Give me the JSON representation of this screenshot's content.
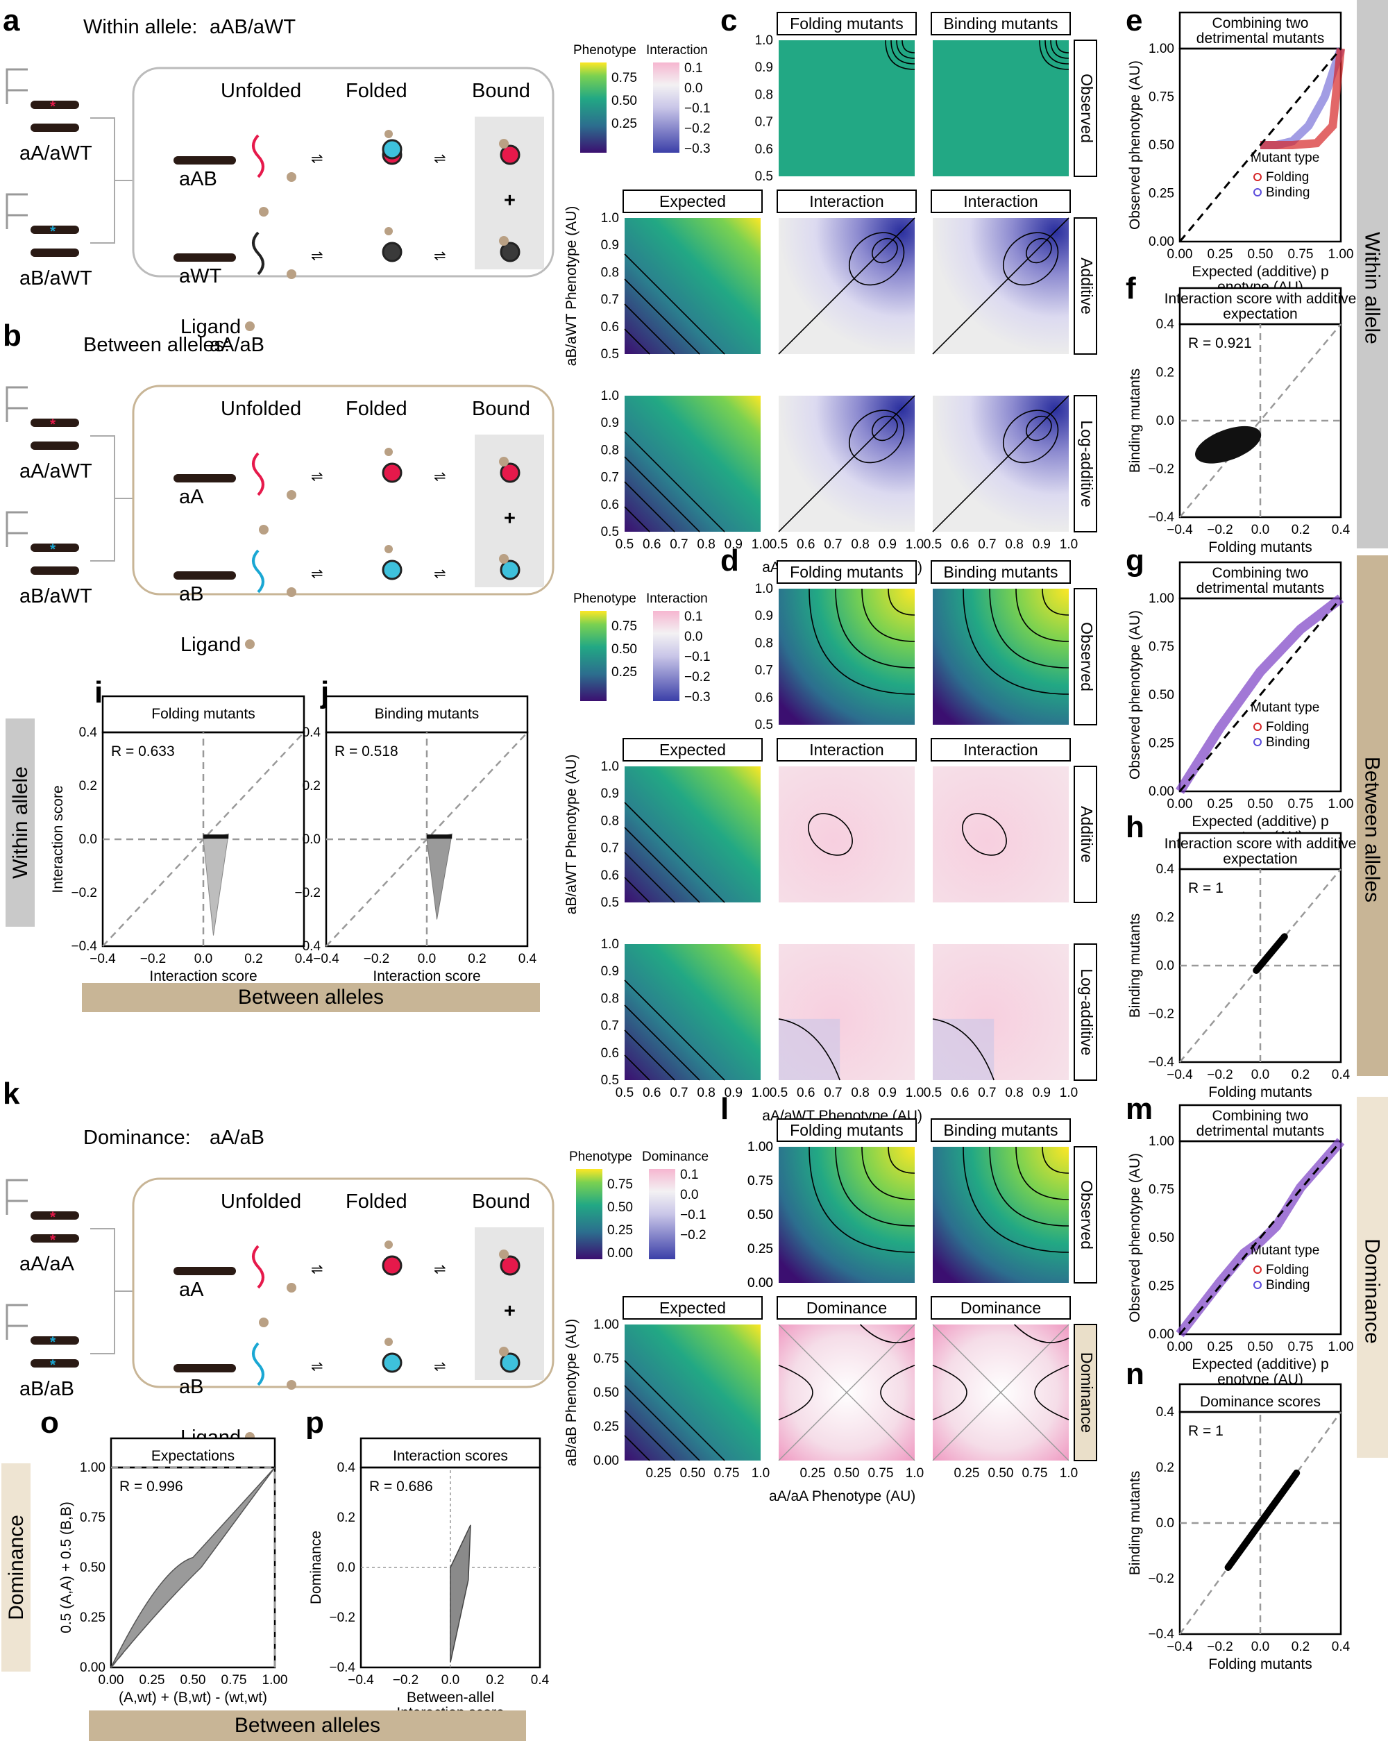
{
  "panel_labels": [
    "a",
    "b",
    "c",
    "d",
    "e",
    "f",
    "g",
    "h",
    "i",
    "j",
    "k",
    "l",
    "m",
    "n",
    "o",
    "p"
  ],
  "schematics": {
    "a": {
      "title_prefix": "Within allele:",
      "title_allele": "aAB/aWT",
      "genotypes": [
        "aA/aWT",
        "aB/aWT"
      ],
      "molecules": [
        "aAB",
        "aWT"
      ],
      "states": [
        "Unfolded",
        "Folded",
        "Bound"
      ],
      "ligand": "Ligand",
      "plus": "+"
    },
    "b": {
      "title_prefix": "Between alleles:",
      "title_allele": "aA/aB",
      "genotypes": [
        "aA/aWT",
        "aB/aWT"
      ],
      "molecules": [
        "aA",
        "aB"
      ],
      "states": [
        "Unfolded",
        "Folded",
        "Bound"
      ],
      "ligand": "Ligand",
      "plus": "+"
    },
    "k": {
      "title_prefix": "Dominance:",
      "title_allele": "aA/aB",
      "genotypes": [
        "aA/aA",
        "aB/aB"
      ],
      "molecules": [
        "aA",
        "aB"
      ],
      "states": [
        "Unfolded",
        "Folded",
        "Bound"
      ],
      "ligand": "Ligand",
      "plus": "+"
    }
  },
  "heatmap_grids": {
    "c": {
      "columns": [
        "Folding mutants",
        "Binding mutants"
      ],
      "row_strips": [
        "Observed",
        "Additive",
        "Log-additive"
      ],
      "second_row_columns": [
        "Expected",
        "Interaction",
        "Interaction"
      ],
      "ylabel": "aB/aWT Phenotype (AU)",
      "xlabel": "aA/aWT Phenotype (AU)",
      "ticks": [
        "0.5",
        "0.6",
        "0.7",
        "0.8",
        "0.9",
        "1.0"
      ],
      "legend": {
        "phenotype": "Phenotype",
        "phenotype_ticks": [
          "0.75",
          "0.50",
          "0.25"
        ],
        "interaction": "Interaction",
        "interaction_ticks": [
          "0.1",
          "0.0",
          "−0.1",
          "−0.2",
          "−0.3"
        ]
      }
    },
    "d": {
      "columns": [
        "Folding mutants",
        "Binding mutants"
      ],
      "row_strips": [
        "Observed",
        "Additive",
        "Log-additive"
      ],
      "second_row_columns": [
        "Expected",
        "Interaction",
        "Interaction"
      ],
      "ylabel": "aB/aWT Phenotype (AU)",
      "xlabel": "aA/aWT Phenotype (AU)",
      "ticks": [
        "0.5",
        "0.6",
        "0.7",
        "0.8",
        "0.9",
        "1.0"
      ],
      "legend": {
        "phenotype": "Phenotype",
        "phenotype_ticks": [
          "0.75",
          "0.50",
          "0.25"
        ],
        "interaction": "Interaction",
        "interaction_ticks": [
          "0.1",
          "0.0",
          "−0.1",
          "−0.2",
          "−0.3"
        ]
      }
    },
    "l": {
      "columns": [
        "Folding mutants",
        "Binding mutants"
      ],
      "row_strips": [
        "Observed",
        "Dominance"
      ],
      "second_row_columns": [
        "Expected",
        "Dominance",
        "Dominance"
      ],
      "ylabel": "aB/aB Phenotype (AU)",
      "xlabel": "aA/aA Phenotype (AU)",
      "yticks": [
        "0.00",
        "0.25",
        "0.50",
        "0.75",
        "1.00"
      ],
      "xticks": [
        "0.25",
        "0.50",
        "0.75",
        "1.0"
      ],
      "legend": {
        "phenotype": "Phenotype",
        "phenotype_ticks": [
          "0.75",
          "0.50",
          "0.25",
          "0.00"
        ],
        "interaction": "Dominance",
        "interaction_ticks": [
          "0.1",
          "0.0",
          "−0.1",
          "−0.2"
        ]
      }
    }
  },
  "side_labels": {
    "within": "Within allele",
    "between": "Between alleles",
    "dominance": "Dominance"
  },
  "bottom_bars": {
    "ij": "Between alleles",
    "op": "Between alleles",
    "left_ij": "Within allele",
    "left_op": "Dominance"
  },
  "chart_data": [
    {
      "id": "e",
      "type": "line",
      "title": "Combining two detrimental mutants",
      "xlabel": "Expected (additive) phenotype (AU)",
      "ylabel": "Observed phenotype (AU)",
      "xlim": [
        0,
        1
      ],
      "ylim": [
        0,
        1
      ],
      "ticks": [
        "0.00",
        "0.25",
        "0.50",
        "0.75",
        "1.00"
      ],
      "legend_title": "Mutant type",
      "legend": [
        "Folding",
        "Binding"
      ],
      "series": [
        {
          "name": "Binding",
          "x": [
            0.5,
            0.6,
            0.7,
            0.8,
            0.9,
            1.0
          ],
          "y": [
            0.5,
            0.5,
            0.52,
            0.6,
            0.75,
            1.0
          ]
        },
        {
          "name": "Folding",
          "x": [
            0.5,
            0.7,
            0.85,
            0.95,
            1.0
          ],
          "y": [
            0.5,
            0.5,
            0.51,
            0.6,
            1.0
          ]
        },
        {
          "name": "identity",
          "x": [
            0,
            1
          ],
          "y": [
            0,
            1
          ]
        }
      ]
    },
    {
      "id": "f",
      "type": "scatter",
      "title": "Interaction score with additive expectation",
      "xlabel": "Folding mutants",
      "ylabel": "Binding mutants",
      "xlim": [
        -0.4,
        0.4
      ],
      "ylim": [
        -0.4,
        0.4
      ],
      "ticks": [
        "−0.4",
        "−0.2",
        "0.0",
        "0.2",
        "0.4"
      ],
      "annotation": "R = 0.921"
    },
    {
      "id": "g",
      "type": "line",
      "title": "Combining two detrimental mutants",
      "xlabel": "Expected (additive) phenotype (AU)",
      "ylabel": "Observed phenotype (AU)",
      "xlim": [
        0,
        1
      ],
      "ylim": [
        0,
        1
      ],
      "ticks": [
        "0.00",
        "0.25",
        "0.50",
        "0.75",
        "1.00"
      ],
      "legend_title": "Mutant type",
      "legend": [
        "Folding",
        "Binding"
      ],
      "series": [
        {
          "name": "Binding",
          "x": [
            0,
            0.25,
            0.5,
            0.75,
            1.0
          ],
          "y": [
            0,
            0.33,
            0.62,
            0.84,
            1.0
          ]
        },
        {
          "name": "identity",
          "x": [
            0,
            1
          ],
          "y": [
            0,
            1
          ]
        }
      ]
    },
    {
      "id": "h",
      "type": "scatter",
      "title": "Interaction score with additive expectation",
      "xlabel": "Folding mutants",
      "ylabel": "Binding mutants",
      "xlim": [
        -0.4,
        0.4
      ],
      "ylim": [
        -0.4,
        0.4
      ],
      "ticks": [
        "−0.4",
        "−0.2",
        "0.0",
        "0.2",
        "0.4"
      ],
      "annotation": "R = 1"
    },
    {
      "id": "i",
      "type": "scatter",
      "title": "Folding mutants",
      "xlabel": "Interaction score",
      "ylabel": "Interaction score",
      "xlim": [
        -0.4,
        0.4
      ],
      "ylim": [
        -0.4,
        0.4
      ],
      "ticks": [
        "−0.4",
        "−0.2",
        "0.0",
        "0.2",
        "0.4"
      ],
      "annotation": "R = 0.633"
    },
    {
      "id": "j",
      "type": "scatter",
      "title": "Binding mutants",
      "xlabel": "Interaction score",
      "xlim": [
        -0.4,
        0.4
      ],
      "ylim": [
        -0.4,
        0.4
      ],
      "ticks": [
        "−0.4",
        "−0.2",
        "0.0",
        "0.2",
        "0.4"
      ],
      "annotation": "R = 0.518"
    },
    {
      "id": "m",
      "type": "line",
      "title": "Combining two detrimental mutants",
      "xlabel": "Expected (additive) phenotype (AU)",
      "ylabel": "Observed phenotype (AU)",
      "xlim": [
        0,
        1
      ],
      "ylim": [
        0,
        1
      ],
      "ticks": [
        "0.00",
        "0.25",
        "0.50",
        "0.75",
        "1.00"
      ],
      "legend_title": "Mutant type",
      "legend": [
        "Folding",
        "Binding"
      ],
      "series": [
        {
          "name": "Binding",
          "x": [
            0,
            0.25,
            0.4,
            0.5,
            0.6,
            0.75,
            1.0
          ],
          "y": [
            0,
            0.27,
            0.42,
            0.48,
            0.56,
            0.76,
            1.0
          ]
        },
        {
          "name": "identity",
          "x": [
            0,
            1
          ],
          "y": [
            0,
            1
          ]
        }
      ]
    },
    {
      "id": "n",
      "type": "scatter",
      "title": "Dominance scores",
      "xlabel": "Folding mutants",
      "ylabel": "Binding mutants",
      "xlim": [
        -0.4,
        0.4
      ],
      "ylim": [
        -0.4,
        0.4
      ],
      "ticks": [
        "−0.4",
        "−0.2",
        "0.0",
        "0.2",
        "0.4"
      ],
      "annotation": "R = 1"
    },
    {
      "id": "o",
      "type": "line",
      "title": "Expectations",
      "xlabel": "(A,wt) + (B,wt) - (wt,wt)",
      "ylabel": "0.5 (A,A) + 0.5 (B,B)",
      "xlim": [
        0,
        1
      ],
      "ylim": [
        0,
        1
      ],
      "ticks": [
        "0.00",
        "0.25",
        "0.50",
        "0.75",
        "1.00"
      ],
      "annotation": "R = 0.996"
    },
    {
      "id": "p",
      "type": "scatter",
      "title": "Interaction scores",
      "xlabel": "Between-allele Interaction score",
      "ylabel": "Dominance",
      "xlim": [
        -0.4,
        0.4
      ],
      "ylim": [
        -0.4,
        0.4
      ],
      "ticks": [
        "−0.4",
        "−0.2",
        "0.0",
        "0.2",
        "0.4"
      ],
      "annotation": "R = 0.686"
    }
  ]
}
